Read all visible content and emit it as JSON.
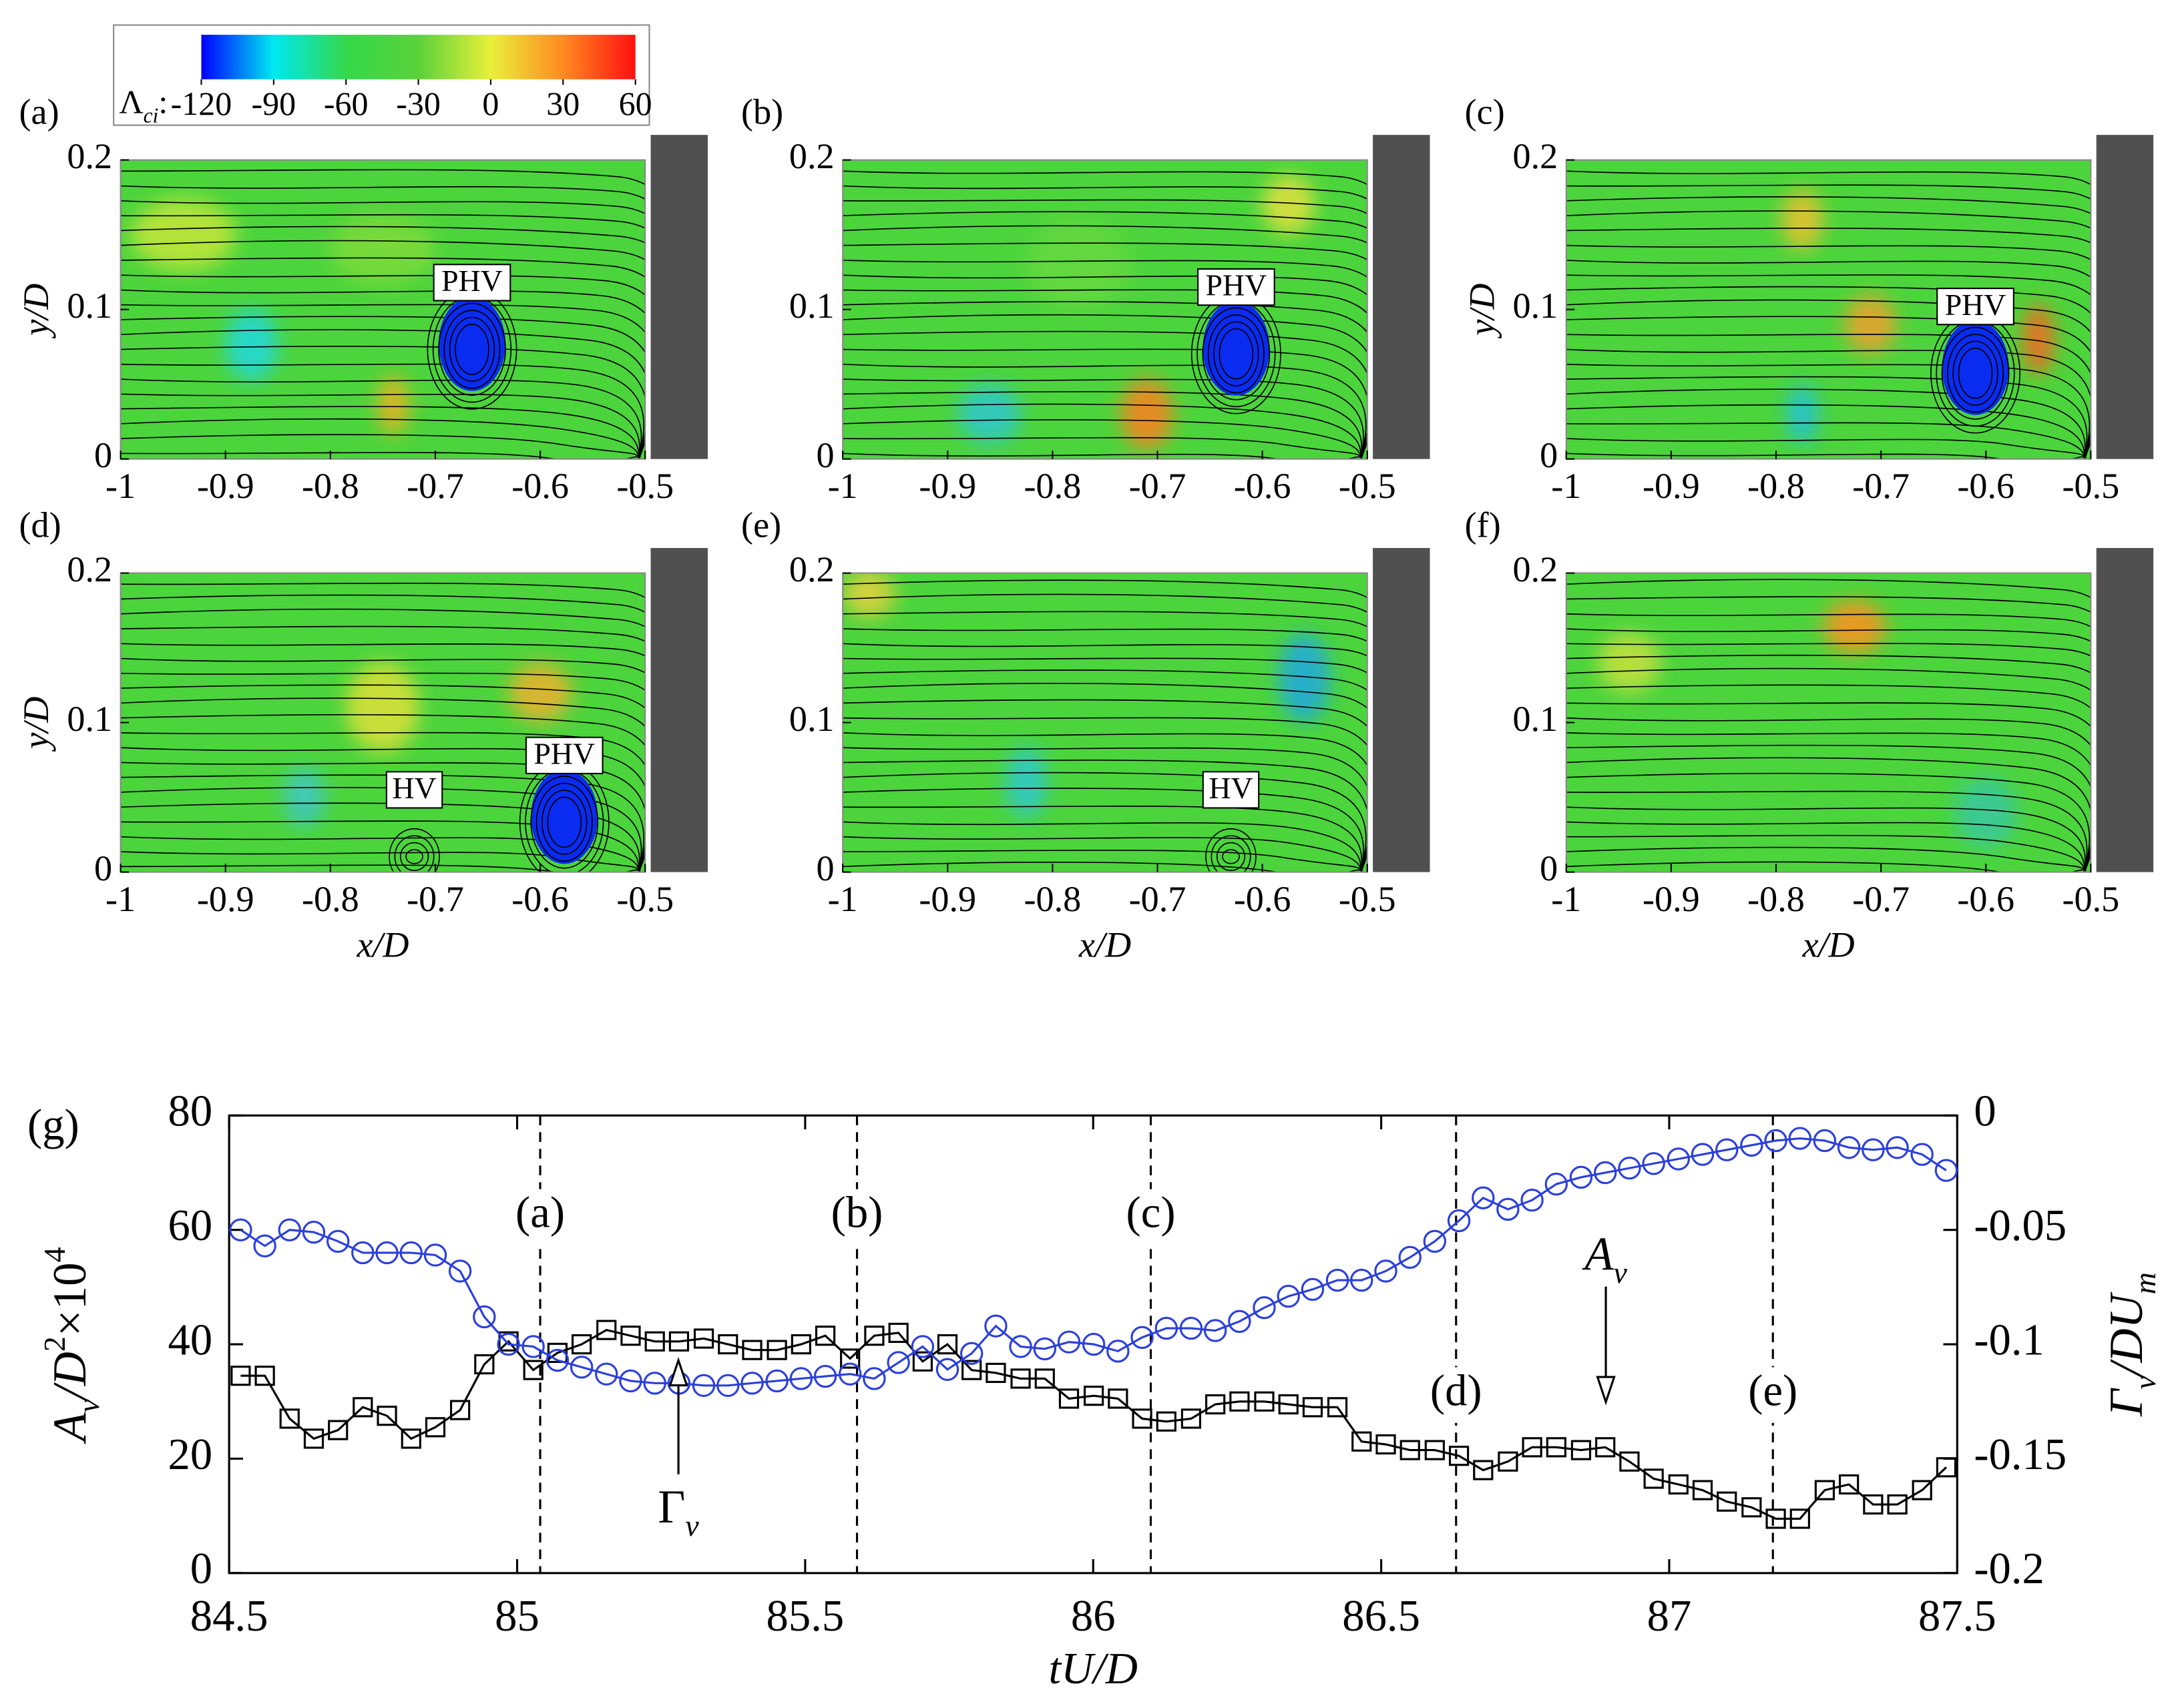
{
  "chart_data": [
    {
      "type": "contour",
      "panel_label": "(a)",
      "xlim": [
        -1,
        -0.5
      ],
      "ylim": [
        0,
        0.2
      ],
      "xticks": [
        -1,
        -0.9,
        -0.8,
        -0.7,
        -0.6,
        -0.5
      ],
      "yticks": [
        0,
        0.1,
        0.2
      ],
      "ylabel": "y/D",
      "field_color": "#4cd43c",
      "wall_color": "#505050",
      "annotations": [
        {
          "text": "PHV",
          "x": -0.665,
          "y": 0.118
        }
      ],
      "colorbar": {
        "label_parts": [
          "Λ",
          "ci",
          ":"
        ],
        "lim": [
          -120,
          60
        ],
        "ticks": [
          -120,
          -90,
          -60,
          -30,
          0,
          30,
          60
        ],
        "colors": [
          "#0000ff",
          "#00e8f0",
          "#33d94a",
          "#5ad23a",
          "#e8f03a",
          "#ff8a20",
          "#ff1010"
        ]
      }
    },
    {
      "type": "contour",
      "panel_label": "(b)",
      "xlim": [
        -1,
        -0.5
      ],
      "ylim": [
        0,
        0.2
      ],
      "xticks": [
        -1,
        -0.9,
        -0.8,
        -0.7,
        -0.6,
        -0.5
      ],
      "yticks": [
        0,
        0.1,
        0.2
      ],
      "field_color": "#4cd43c",
      "wall_color": "#505050",
      "annotations": [
        {
          "text": "PHV",
          "x": -0.625,
          "y": 0.115
        }
      ]
    },
    {
      "type": "contour",
      "panel_label": "(c)",
      "xlim": [
        -1,
        -0.5
      ],
      "ylim": [
        0,
        0.2
      ],
      "xticks": [
        -1,
        -0.9,
        -0.8,
        -0.7,
        -0.6,
        -0.5
      ],
      "yticks": [
        0,
        0.1,
        0.2
      ],
      "ylabel": "y/D",
      "field_color": "#4cd43c",
      "wall_color": "#505050",
      "annotations": [
        {
          "text": "PHV",
          "x": -0.61,
          "y": 0.102
        }
      ]
    },
    {
      "type": "contour",
      "panel_label": "(d)",
      "xlim": [
        -1,
        -0.5
      ],
      "ylim": [
        0,
        0.2
      ],
      "xticks": [
        -1,
        -0.9,
        -0.8,
        -0.7,
        -0.6,
        -0.5
      ],
      "yticks": [
        0,
        0.1,
        0.2
      ],
      "ylabel": "y/D",
      "xlabel": "x/D",
      "field_color": "#4cd43c",
      "wall_color": "#505050",
      "annotations": [
        {
          "text": "PHV",
          "x": -0.577,
          "y": 0.078
        },
        {
          "text": "HV",
          "x": -0.72,
          "y": 0.055
        }
      ]
    },
    {
      "type": "contour",
      "panel_label": "(e)",
      "xlim": [
        -1,
        -0.5
      ],
      "ylim": [
        0,
        0.2
      ],
      "xticks": [
        -1,
        -0.9,
        -0.8,
        -0.7,
        -0.6,
        -0.5
      ],
      "yticks": [
        0,
        0.1,
        0.2
      ],
      "xlabel": "x/D",
      "field_color": "#4cd43c",
      "wall_color": "#505050",
      "annotations": [
        {
          "text": "HV",
          "x": -0.63,
          "y": 0.055
        }
      ]
    },
    {
      "type": "contour",
      "panel_label": "(f)",
      "xlim": [
        -1,
        -0.5
      ],
      "ylim": [
        0,
        0.2
      ],
      "xticks": [
        -1,
        -0.9,
        -0.8,
        -0.7,
        -0.6,
        -0.5
      ],
      "yticks": [
        0,
        0.1,
        0.2
      ],
      "xlabel": "x/D",
      "field_color": "#4cd43c",
      "wall_color": "#505050",
      "annotations": []
    },
    {
      "type": "line",
      "panel_label": "(g)",
      "xlabel": "tU/D",
      "ylabel_parts": [
        "A",
        "v",
        "/D",
        "2",
        "×10",
        "4"
      ],
      "y2label_parts": [
        "Γ",
        "v",
        "/DU",
        "m"
      ],
      "xlim": [
        84.5,
        87.5
      ],
      "xticks": [
        84.5,
        85,
        85.5,
        86,
        86.5,
        87,
        87.5
      ],
      "ylim": [
        0,
        80
      ],
      "yticks": [
        0,
        20,
        40,
        60,
        80
      ],
      "y2lim": [
        -0.2,
        0
      ],
      "y2ticks": [
        -0.2,
        -0.15,
        -0.1,
        -0.05,
        0
      ],
      "x": [
        84.52,
        84.562,
        84.605,
        84.647,
        84.689,
        84.732,
        84.774,
        84.816,
        84.858,
        84.901,
        84.943,
        84.985,
        85.028,
        85.07,
        85.112,
        85.155,
        85.197,
        85.239,
        85.281,
        85.324,
        85.366,
        85.408,
        85.451,
        85.493,
        85.535,
        85.578,
        85.62,
        85.662,
        85.704,
        85.747,
        85.789,
        85.831,
        85.874,
        85.916,
        85.958,
        86.001,
        86.043,
        86.085,
        86.127,
        86.17,
        86.212,
        86.254,
        86.297,
        86.339,
        86.381,
        86.424,
        86.466,
        86.508,
        86.55,
        86.593,
        86.635,
        86.677,
        86.72,
        86.762,
        86.804,
        86.847,
        86.889,
        86.931,
        86.973,
        87.016,
        87.058,
        87.1,
        87.143,
        87.185,
        87.227,
        87.27,
        87.312,
        87.354,
        87.396,
        87.439,
        87.481
      ],
      "series": [
        {
          "color": "#000000",
          "marker": "square",
          "values": [
            34.5,
            34.5,
            27,
            23.5,
            25,
            29,
            27.5,
            23.5,
            25.5,
            28.5,
            36.5,
            40.5,
            35.5,
            38.5,
            40,
            42.5,
            41.5,
            40.5,
            40.5,
            41,
            40,
            39,
            39,
            40,
            41.5,
            37.5,
            41.5,
            42,
            37,
            40,
            35.5,
            35,
            34,
            34,
            30.5,
            31,
            30.5,
            27,
            26.5,
            27,
            29.5,
            30,
            30,
            29.5,
            29,
            29,
            23,
            22.5,
            21.5,
            21.5,
            20.5,
            18,
            19.5,
            22,
            22,
            21.5,
            22,
            19.5,
            16.5,
            15.5,
            14.5,
            12.5,
            11.5,
            9.5,
            9.5,
            14.5,
            15.5,
            12,
            12,
            14.5,
            18.5
          ]
        },
        {
          "color": "#2b3fdc",
          "marker": "circle",
          "axis": "y2",
          "values": [
            -0.05,
            -0.057,
            -0.05,
            -0.051,
            -0.055,
            -0.06,
            -0.06,
            -0.06,
            -0.061,
            -0.068,
            -0.088,
            -0.1,
            -0.101,
            -0.107,
            -0.11,
            -0.113,
            -0.116,
            -0.117,
            -0.117,
            -0.118,
            -0.118,
            -0.117,
            -0.116,
            -0.115,
            -0.114,
            -0.113,
            -0.115,
            -0.108,
            -0.101,
            -0.111,
            -0.104,
            -0.092,
            -0.101,
            -0.102,
            -0.099,
            -0.1,
            -0.103,
            -0.097,
            -0.093,
            -0.093,
            -0.094,
            -0.09,
            -0.084,
            -0.079,
            -0.076,
            -0.072,
            -0.072,
            -0.068,
            -0.062,
            -0.055,
            -0.046,
            -0.036,
            -0.041,
            -0.037,
            -0.03,
            -0.027,
            -0.025,
            -0.023,
            -0.021,
            -0.019,
            -0.017,
            -0.015,
            -0.013,
            -0.011,
            -0.01,
            -0.011,
            -0.014,
            -0.015,
            -0.014,
            -0.017,
            -0.024
          ]
        }
      ],
      "events": [
        {
          "label": "(a)",
          "x": 85.04
        },
        {
          "label": "(b)",
          "x": 85.59
        },
        {
          "label": "(c)",
          "x": 86.1
        },
        {
          "label": "(d)",
          "x": 86.63
        },
        {
          "label": "(e)",
          "x": 87.18
        }
      ],
      "annotations": [
        {
          "parts": [
            "Γ",
            "v"
          ],
          "x": 85.28
        },
        {
          "parts": [
            "A",
            "v"
          ],
          "x": 86.89
        }
      ]
    }
  ]
}
